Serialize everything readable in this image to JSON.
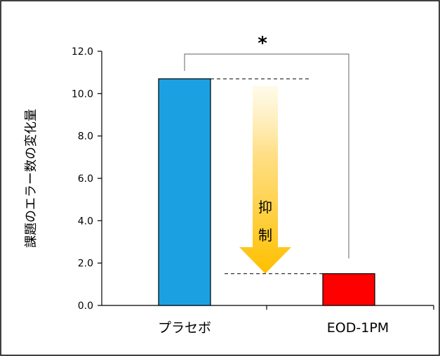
{
  "chart_data": {
    "type": "bar",
    "categories": [
      "プラセボ",
      "EOD-1PM"
    ],
    "values": [
      10.7,
      1.5
    ],
    "colors": [
      "#1BA1E2",
      "#FF0000"
    ],
    "ylabel": "課題のエラー数の変化量",
    "xlabel": "",
    "ylim": [
      0,
      12
    ],
    "yticks": [
      "0.0",
      "2.0",
      "4.0",
      "6.0",
      "8.0",
      "10.0",
      "12.0"
    ],
    "ytick_values": [
      0,
      2,
      4,
      6,
      8,
      10,
      12
    ],
    "grid": false,
    "legend": "none",
    "annotations": {
      "significance": "*",
      "arrow_text": [
        "抑",
        "制"
      ]
    }
  }
}
